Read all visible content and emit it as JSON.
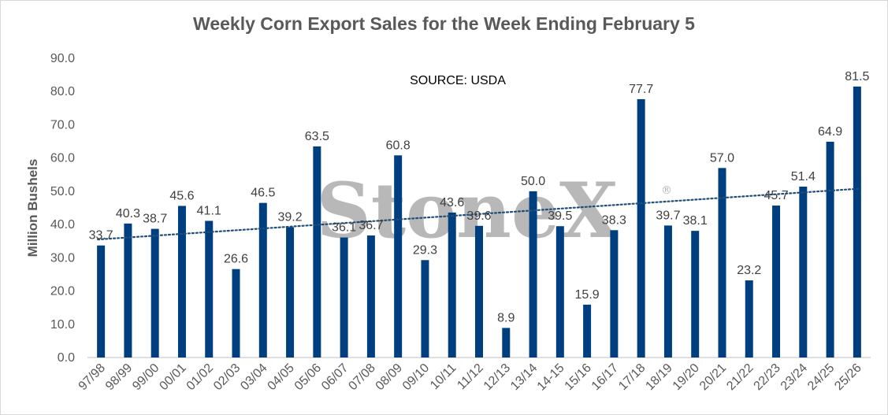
{
  "chart_data": {
    "type": "bar",
    "title": "Weekly Corn Export Sales for the Week Ending February 5",
    "ylabel": "Million Bushels",
    "xlabel": "",
    "annotation": "SOURCE: USDA",
    "watermark": "StoneX",
    "watermark_mark": "®",
    "ylim": [
      0,
      90
    ],
    "yticks": [
      "0.0",
      "10.0",
      "20.0",
      "30.0",
      "40.0",
      "50.0",
      "60.0",
      "70.0",
      "80.0",
      "90.0"
    ],
    "ytick_values": [
      0,
      10,
      20,
      30,
      40,
      50,
      60,
      70,
      80,
      90
    ],
    "categories": [
      "97/98",
      "98/99",
      "99/00",
      "00/01",
      "01/02",
      "02/03",
      "03/04",
      "04/05",
      "05/06",
      "06/07",
      "07/08",
      "08/09",
      "09/10",
      "10/11",
      "11/12",
      "12/13",
      "13/14",
      "14-15",
      "15/16",
      "16/17",
      "17/18",
      "18/19",
      "19/20",
      "20/21",
      "21/22",
      "22/23",
      "23/24",
      "24/25",
      "25/26"
    ],
    "values": [
      33.7,
      40.3,
      38.7,
      45.6,
      41.1,
      26.6,
      46.5,
      39.2,
      63.5,
      36.1,
      36.7,
      60.8,
      29.3,
      43.6,
      39.6,
      8.9,
      50.0,
      39.5,
      15.9,
      38.3,
      77.7,
      39.7,
      38.1,
      57.0,
      23.2,
      45.7,
      51.4,
      64.9,
      81.5
    ],
    "value_labels": [
      "33.7",
      "40.3",
      "38.7",
      "45.6",
      "41.1",
      "26.6",
      "46.5",
      "39.2",
      "63.5",
      "36.1",
      "36.7",
      "60.8",
      "29.3",
      "43.6",
      "39.6",
      "8.9",
      "50.0",
      "39.5",
      "15.9",
      "38.3",
      "77.7",
      "39.7",
      "38.1",
      "57.0",
      "23.2",
      "45.7",
      "51.4",
      "64.9",
      "81.5"
    ],
    "trendline": {
      "type": "linear",
      "start": 35.5,
      "end": 50.8,
      "style": "dotted"
    },
    "grid": false,
    "legend": "none",
    "colors": {
      "bar": "#003f7f",
      "trend": "#1f4e79",
      "title": "#595959",
      "axis": "#595959"
    }
  }
}
